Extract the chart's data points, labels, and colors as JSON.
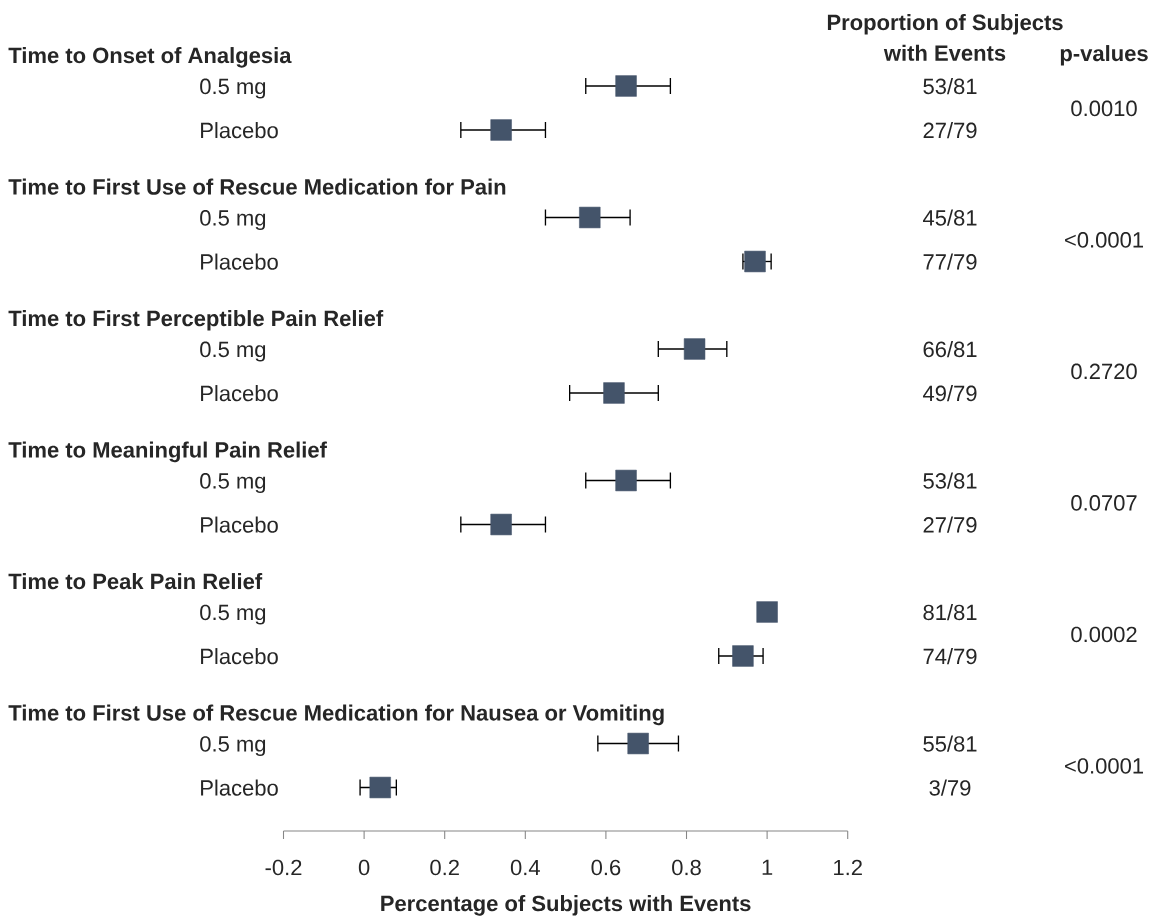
{
  "chart_data": {
    "type": "scatter",
    "orientation": "horizontal",
    "xlabel": "Percentage of Subjects with Events",
    "categories": [
      null,
      "0.5 mg",
      "Placebo",
      null,
      "0.5 mg",
      "Placebo",
      null,
      "0.5 mg",
      "Placebo",
      null,
      "0.5 mg",
      "Placebo",
      null,
      "0.5 mg",
      "Placebo",
      null,
      "0.5 mg",
      "Placebo"
    ],
    "values": [
      null,
      0.65,
      0.34,
      null,
      0.56,
      0.97,
      null,
      0.82,
      0.62,
      null,
      0.65,
      0.34,
      null,
      1.0,
      0.94,
      null,
      0.68,
      0.04
    ],
    "errors": [
      null,
      [
        0.55,
        0.76
      ],
      [
        0.24,
        0.45
      ],
      null,
      [
        0.45,
        0.66
      ],
      [
        0.94,
        1.01
      ],
      null,
      [
        0.73,
        0.9
      ],
      [
        0.51,
        0.73
      ],
      null,
      [
        0.55,
        0.76
      ],
      [
        0.24,
        0.45
      ],
      null,
      null,
      [
        0.88,
        0.99
      ],
      null,
      [
        0.58,
        0.78
      ],
      [
        -0.01,
        0.08
      ]
    ],
    "value_labels": [
      null,
      "53/81",
      "27/79",
      null,
      "45/81",
      "77/79",
      null,
      "66/81",
      "49/79",
      null,
      "53/81",
      "27/79",
      null,
      "81/81",
      "74/79",
      null,
      "55/81",
      "3/79"
    ],
    "color": "#44546a",
    "marker": "square",
    "xlim": [
      -0.2,
      1.2
    ],
    "xticks": [
      -0.2,
      0,
      0.2,
      0.4,
      0.6,
      0.8,
      1,
      1.2
    ],
    "annotations": [
      "Proportion of Subjects with Events",
      "p-values",
      "Time to Onset of Analgesia",
      "0.0010",
      "Time to First Use of Rescue Medication for Pain",
      "<0.0001",
      "Time to First Perceptible Pain Relief",
      "0.2720",
      "Time to Meaningful Pain Relief",
      "0.0707",
      "Time to Peak Pain Relief",
      "0.0002",
      "Time to First Use of Rescue Medication for Nausea or Vomiting",
      "<0.0001"
    ]
  }
}
